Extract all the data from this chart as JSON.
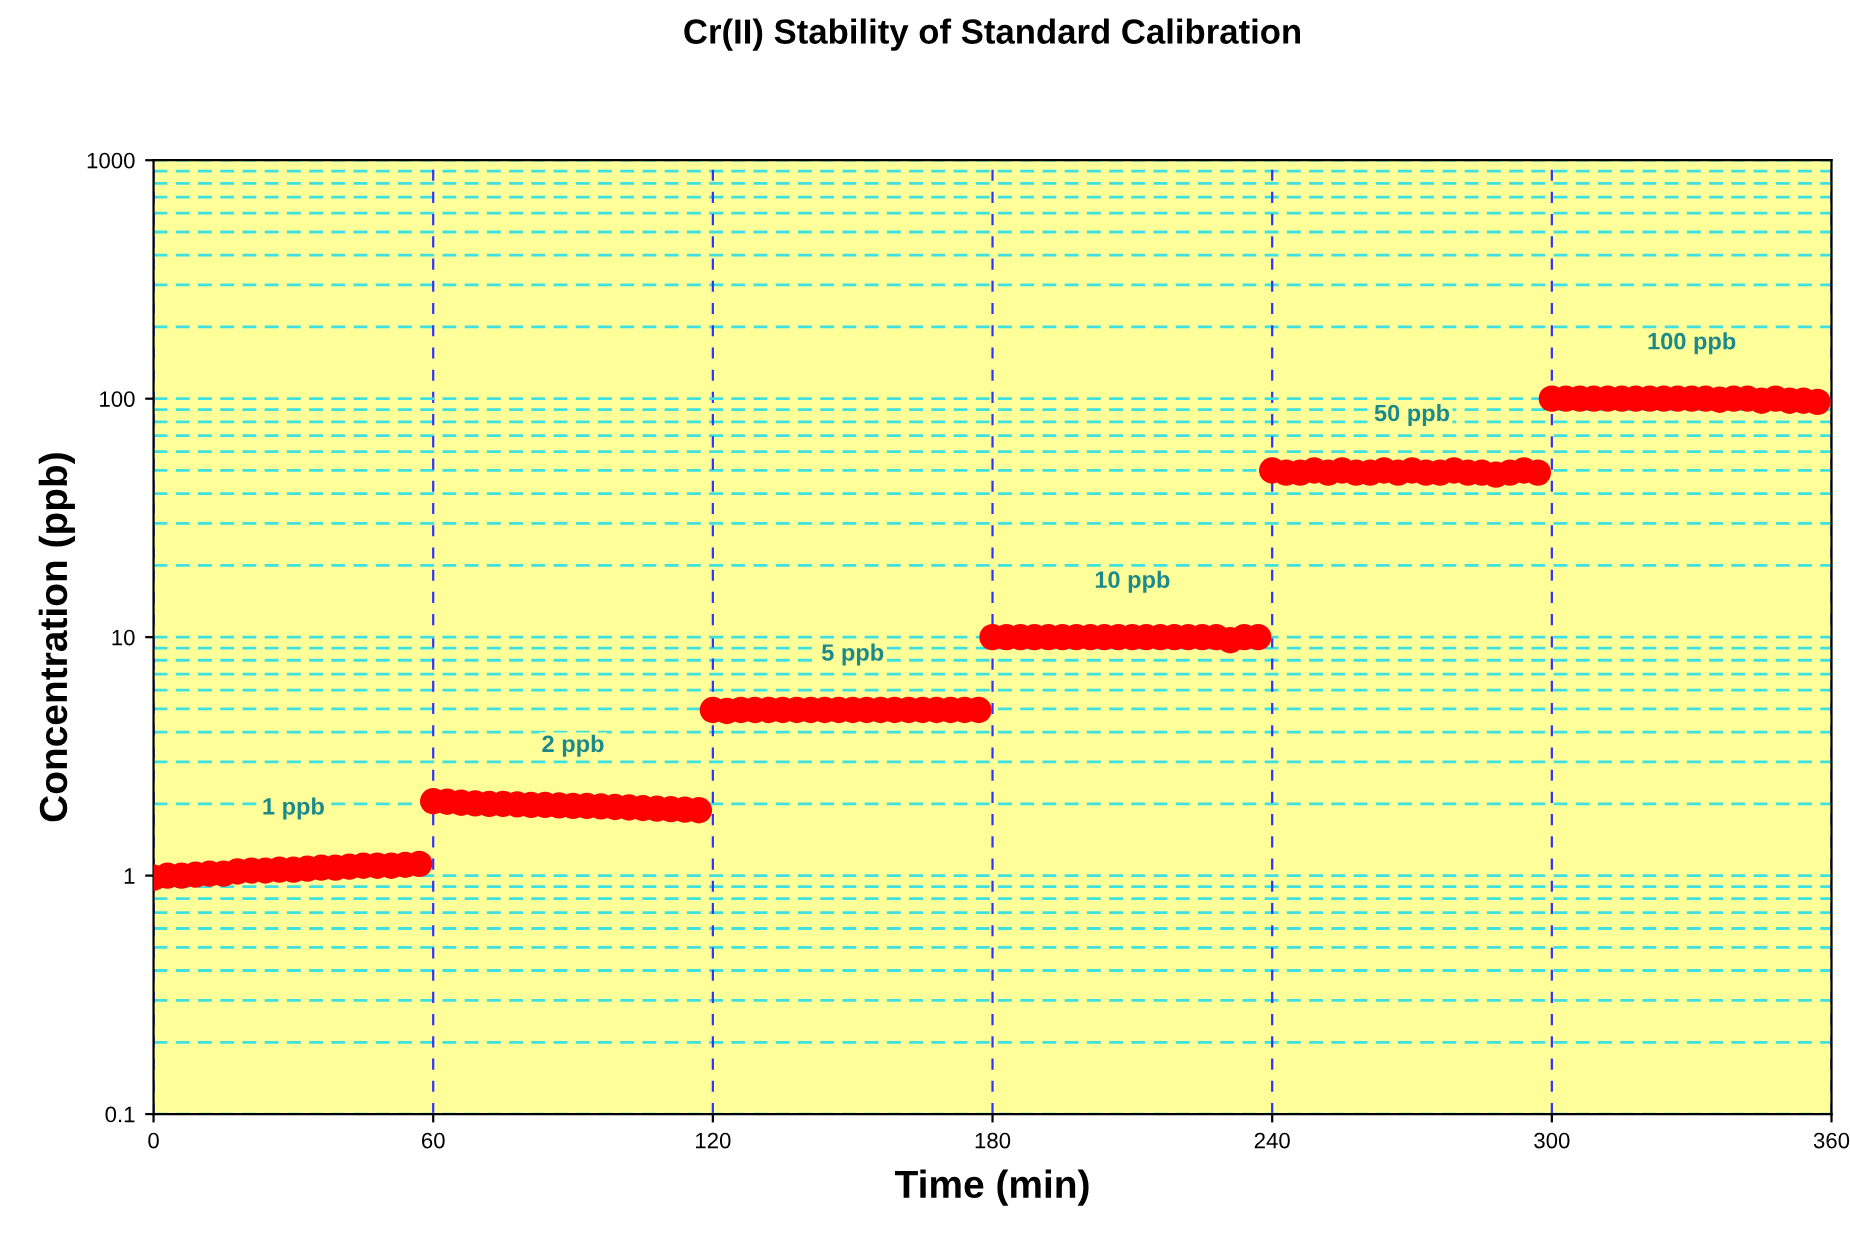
{
  "chart_data": {
    "type": "scatter",
    "title": "Cr(II) Stability of Standard Calibration",
    "xlabel": "Time (min)",
    "ylabel": "Concentration (ppb)",
    "x": [
      0,
      3,
      6,
      9,
      12,
      15,
      18,
      21,
      24,
      27,
      30,
      33,
      36,
      39,
      42,
      45,
      48,
      51,
      54,
      57,
      60,
      63,
      66,
      69,
      72,
      75,
      78,
      81,
      84,
      87,
      90,
      93,
      96,
      99,
      102,
      105,
      108,
      111,
      114,
      117,
      120,
      123,
      126,
      129,
      132,
      135,
      138,
      141,
      144,
      147,
      150,
      153,
      156,
      159,
      162,
      165,
      168,
      171,
      174,
      177,
      180,
      183,
      186,
      189,
      192,
      195,
      198,
      201,
      204,
      207,
      210,
      213,
      216,
      219,
      222,
      225,
      228,
      231,
      234,
      237,
      240,
      243,
      246,
      249,
      252,
      255,
      258,
      261,
      264,
      267,
      270,
      273,
      276,
      279,
      282,
      285,
      288,
      291,
      294,
      297,
      300,
      303,
      306,
      309,
      312,
      315,
      318,
      321,
      324,
      327,
      330,
      333,
      336,
      339,
      342,
      345,
      348,
      351,
      354,
      357
    ],
    "series": [
      {
        "color": "#ff0000",
        "values": [
          0.98,
          1.0,
          1.0,
          1.01,
          1.02,
          1.02,
          1.04,
          1.05,
          1.05,
          1.06,
          1.06,
          1.07,
          1.08,
          1.08,
          1.09,
          1.1,
          1.1,
          1.1,
          1.11,
          1.12,
          2.05,
          2.04,
          2.02,
          2.01,
          2.0,
          2.0,
          1.99,
          1.98,
          1.98,
          1.97,
          1.96,
          1.96,
          1.95,
          1.94,
          1.93,
          1.92,
          1.91,
          1.9,
          1.89,
          1.88,
          4.95,
          4.9,
          4.95,
          4.95,
          4.95,
          4.95,
          4.95,
          4.95,
          4.95,
          4.95,
          4.95,
          4.95,
          4.95,
          4.95,
          4.95,
          4.95,
          4.95,
          4.95,
          4.95,
          4.95,
          10,
          10,
          10,
          10,
          10,
          10,
          10,
          10,
          10,
          10,
          10,
          10,
          10,
          10,
          10,
          10,
          10,
          9.7,
          10,
          10,
          50,
          49,
          49,
          50,
          49,
          50,
          49,
          49,
          50,
          49,
          50,
          49,
          49,
          50,
          49,
          49,
          48,
          49,
          50,
          49,
          100,
          100,
          100,
          100,
          100,
          100,
          100,
          100,
          100,
          100,
          100,
          100,
          99,
          100,
          100,
          98,
          100,
          98,
          98,
          97
        ]
      }
    ],
    "annotations": [
      "1 ppb",
      "2 ppb",
      "5 ppb",
      "10 ppb",
      "50 ppb",
      "100 ppb"
    ],
    "log": "y",
    "xlim": [
      0,
      360
    ],
    "ylim": [
      0.1,
      1000
    ],
    "xticks": [
      0,
      60,
      120,
      180,
      240,
      300,
      360
    ],
    "yticks": [
      0.1,
      1,
      10,
      100,
      1000
    ],
    "grid": true,
    "marker": "circle",
    "legend": false
  }
}
